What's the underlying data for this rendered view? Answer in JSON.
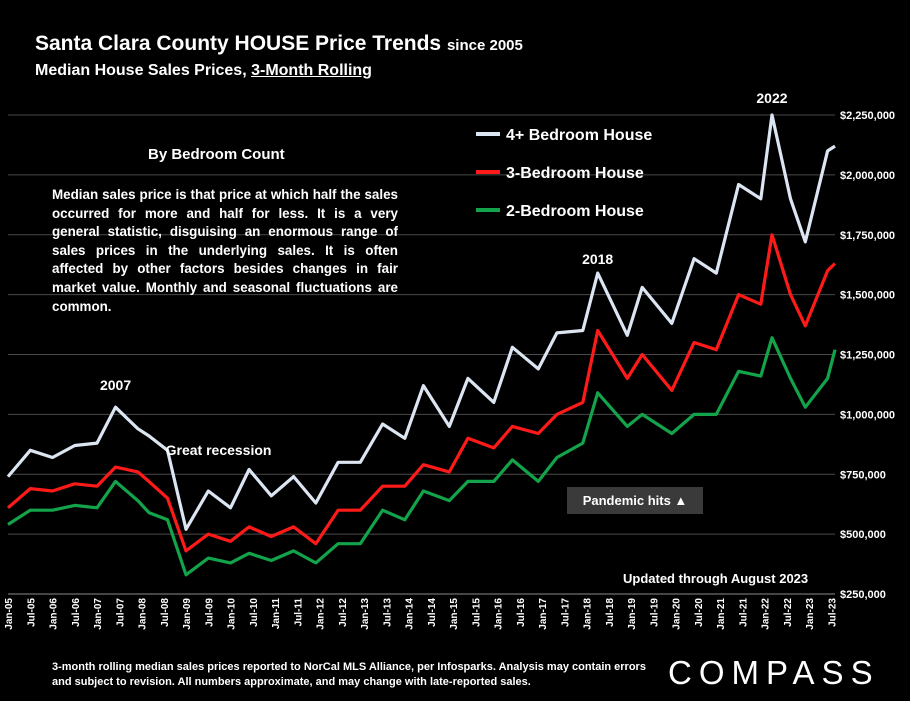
{
  "header": {
    "title": "Santa Clara County HOUSE Price Trends",
    "title_suffix": "since 2005",
    "subtitle_prefix": "Median House Sales Prices, ",
    "subtitle_underlined": "3-Month Rolling"
  },
  "panel": {
    "heading": "By Bedroom Count",
    "text": "Median sales price is that price at which half the sales occurred for more and half for less. It is a very general statistic, disguising an enormous range of sales prices in the underlying sales. It is often affected by other factors besides changes in fair market value. Monthly and seasonal fluctuations are common."
  },
  "annotations": {
    "pandemic": "Pandemic hits ▲",
    "updated": "Updated through August 2023"
  },
  "footer": {
    "footnote": "3-month rolling median sales prices reported to NorCal MLS Alliance, per Infosparks.  Analysis may contain errors and subject to revision. All numbers approximate, and may change with late-reported sales.",
    "brand": "COMPASS"
  },
  "chart_data": {
    "type": "line",
    "title": "Santa Clara County HOUSE Price Trends since 2005",
    "subtitle": "Median House Sales Prices, 3-Month Rolling",
    "x_range": [
      "2005-01",
      "2023-08"
    ],
    "ylim": [
      250000,
      2250000
    ],
    "y_ticks": [
      250000,
      500000,
      750000,
      1000000,
      1250000,
      1500000,
      1750000,
      2000000,
      2250000
    ],
    "y_tick_labels": [
      "$250,000",
      "$500,000",
      "$750,000",
      "$1,000,000",
      "$1,250,000",
      "$1,500,000",
      "$1,750,000",
      "$2,000,000",
      "$2,250,000"
    ],
    "x_tick_labels": [
      "Jan-05",
      "Jul-05",
      "Jan-06",
      "Jul-06",
      "Jan-07",
      "Jul-07",
      "Jan-08",
      "Jul-08",
      "Jan-09",
      "Jul-09",
      "Jan-10",
      "Jul-10",
      "Jan-11",
      "Jul-11",
      "Jan-12",
      "Jul-12",
      "Jan-13",
      "Jul-13",
      "Jan-14",
      "Jul-14",
      "Jan-15",
      "Jul-15",
      "Jan-16",
      "Jul-16",
      "Jan-17",
      "Jul-17",
      "Jan-18",
      "Jul-18",
      "Jan-19",
      "Jul-19",
      "Jan-20",
      "Jul-20",
      "Jan-21",
      "Jul-21",
      "Jan-22",
      "Jul-22",
      "Jan-23",
      "Jul-23"
    ],
    "grid": true,
    "legend": "top-center",
    "series": [
      {
        "name": "4+ Bedroom House",
        "color": "#dce6f2",
        "points": [
          [
            "2005-01",
            740000
          ],
          [
            "2005-07",
            850000
          ],
          [
            "2006-01",
            820000
          ],
          [
            "2006-07",
            870000
          ],
          [
            "2007-01",
            880000
          ],
          [
            "2007-06",
            1030000
          ],
          [
            "2007-12",
            940000
          ],
          [
            "2008-03",
            910000
          ],
          [
            "2008-08",
            850000
          ],
          [
            "2009-01",
            520000
          ],
          [
            "2009-07",
            680000
          ],
          [
            "2010-01",
            610000
          ],
          [
            "2010-06",
            770000
          ],
          [
            "2010-12",
            660000
          ],
          [
            "2011-06",
            740000
          ],
          [
            "2011-12",
            630000
          ],
          [
            "2012-06",
            800000
          ],
          [
            "2012-12",
            800000
          ],
          [
            "2013-06",
            960000
          ],
          [
            "2013-12",
            900000
          ],
          [
            "2014-05",
            1120000
          ],
          [
            "2014-12",
            950000
          ],
          [
            "2015-05",
            1150000
          ],
          [
            "2015-12",
            1050000
          ],
          [
            "2016-05",
            1280000
          ],
          [
            "2016-12",
            1190000
          ],
          [
            "2017-05",
            1340000
          ],
          [
            "2017-12",
            1350000
          ],
          [
            "2018-04",
            1590000
          ],
          [
            "2018-12",
            1330000
          ],
          [
            "2019-04",
            1530000
          ],
          [
            "2019-12",
            1380000
          ],
          [
            "2020-06",
            1650000
          ],
          [
            "2020-12",
            1590000
          ],
          [
            "2021-06",
            1960000
          ],
          [
            "2021-12",
            1900000
          ],
          [
            "2022-03",
            2250000
          ],
          [
            "2022-08",
            1900000
          ],
          [
            "2022-12",
            1720000
          ],
          [
            "2023-06",
            2100000
          ],
          [
            "2023-08",
            2120000
          ]
        ]
      },
      {
        "name": "3-Bedroom House",
        "color": "#ff1a1a",
        "points": [
          [
            "2005-01",
            610000
          ],
          [
            "2005-07",
            690000
          ],
          [
            "2006-01",
            680000
          ],
          [
            "2006-07",
            710000
          ],
          [
            "2007-01",
            700000
          ],
          [
            "2007-06",
            780000
          ],
          [
            "2007-12",
            760000
          ],
          [
            "2008-03",
            720000
          ],
          [
            "2008-08",
            650000
          ],
          [
            "2009-01",
            430000
          ],
          [
            "2009-07",
            500000
          ],
          [
            "2010-01",
            470000
          ],
          [
            "2010-06",
            530000
          ],
          [
            "2010-12",
            490000
          ],
          [
            "2011-06",
            530000
          ],
          [
            "2011-12",
            460000
          ],
          [
            "2012-06",
            600000
          ],
          [
            "2012-12",
            600000
          ],
          [
            "2013-06",
            700000
          ],
          [
            "2013-12",
            700000
          ],
          [
            "2014-05",
            790000
          ],
          [
            "2014-12",
            760000
          ],
          [
            "2015-05",
            900000
          ],
          [
            "2015-12",
            860000
          ],
          [
            "2016-05",
            950000
          ],
          [
            "2016-12",
            920000
          ],
          [
            "2017-05",
            1000000
          ],
          [
            "2017-12",
            1050000
          ],
          [
            "2018-04",
            1350000
          ],
          [
            "2018-12",
            1150000
          ],
          [
            "2019-04",
            1250000
          ],
          [
            "2019-12",
            1100000
          ],
          [
            "2020-06",
            1300000
          ],
          [
            "2020-12",
            1270000
          ],
          [
            "2021-06",
            1500000
          ],
          [
            "2021-12",
            1460000
          ],
          [
            "2022-03",
            1750000
          ],
          [
            "2022-08",
            1500000
          ],
          [
            "2022-12",
            1370000
          ],
          [
            "2023-06",
            1600000
          ],
          [
            "2023-08",
            1630000
          ]
        ]
      },
      {
        "name": "2-Bedroom House",
        "color": "#13a34a",
        "points": [
          [
            "2005-01",
            540000
          ],
          [
            "2005-07",
            600000
          ],
          [
            "2006-01",
            600000
          ],
          [
            "2006-07",
            620000
          ],
          [
            "2007-01",
            610000
          ],
          [
            "2007-06",
            720000
          ],
          [
            "2007-12",
            640000
          ],
          [
            "2008-03",
            590000
          ],
          [
            "2008-08",
            560000
          ],
          [
            "2009-01",
            330000
          ],
          [
            "2009-07",
            400000
          ],
          [
            "2010-01",
            380000
          ],
          [
            "2010-06",
            420000
          ],
          [
            "2010-12",
            390000
          ],
          [
            "2011-06",
            430000
          ],
          [
            "2011-12",
            380000
          ],
          [
            "2012-06",
            460000
          ],
          [
            "2012-12",
            460000
          ],
          [
            "2013-06",
            600000
          ],
          [
            "2013-12",
            560000
          ],
          [
            "2014-05",
            680000
          ],
          [
            "2014-12",
            640000
          ],
          [
            "2015-05",
            720000
          ],
          [
            "2015-12",
            720000
          ],
          [
            "2016-05",
            810000
          ],
          [
            "2016-12",
            720000
          ],
          [
            "2017-05",
            820000
          ],
          [
            "2017-12",
            880000
          ],
          [
            "2018-04",
            1090000
          ],
          [
            "2018-12",
            950000
          ],
          [
            "2019-04",
            1000000
          ],
          [
            "2019-12",
            920000
          ],
          [
            "2020-06",
            1000000
          ],
          [
            "2020-12",
            1000000
          ],
          [
            "2021-06",
            1180000
          ],
          [
            "2021-12",
            1160000
          ],
          [
            "2022-03",
            1320000
          ],
          [
            "2022-08",
            1150000
          ],
          [
            "2022-12",
            1030000
          ],
          [
            "2023-06",
            1150000
          ],
          [
            "2023-08",
            1270000
          ]
        ]
      }
    ],
    "annotations": [
      {
        "text": "2007",
        "x": "2007-06"
      },
      {
        "text": "Great recession",
        "x": "2009-06"
      },
      {
        "text": "2018",
        "x": "2018-04"
      },
      {
        "text": "2022",
        "x": "2022-03"
      }
    ]
  }
}
